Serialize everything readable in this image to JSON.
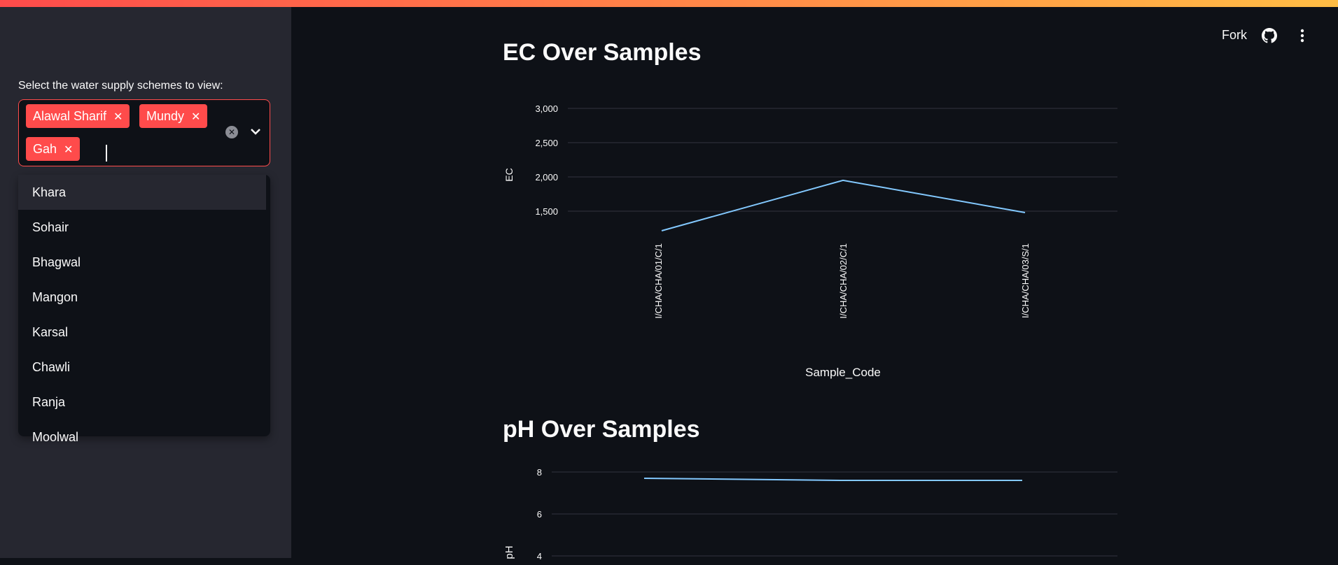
{
  "sidebar": {
    "multiselect_label": "Select the water supply schemes to view:",
    "selected": [
      "Alawal Sharif",
      "Mundy",
      "Gah"
    ],
    "options": [
      "Khara",
      "Sohair",
      "Bhagwal",
      "Mangon",
      "Karsal",
      "Chawli",
      "Ranja",
      "Moolwal"
    ]
  },
  "header": {
    "fork_label": "Fork"
  },
  "sections": {
    "ec_title": "EC Over Samples",
    "ph_title": "pH Over Samples"
  },
  "colors": {
    "accent": "#ff4b4b",
    "line": "#83c9ff",
    "grid": "#31333f"
  },
  "chart_data": [
    {
      "type": "line",
      "title": "EC Over Samples",
      "xlabel": "Sample_Code",
      "ylabel": "EC",
      "categories": [
        "I/CHA/CHA/01/C/1",
        "I/CHA/CHA/02/C/1",
        "I/CHA/CHA/03/S/1"
      ],
      "y_ticks": [
        "1,500",
        "2,000",
        "2,500",
        "3,000"
      ],
      "values": [
        1200,
        1950,
        1480
      ],
      "ylim": [
        1200,
        3000
      ],
      "grid": true
    },
    {
      "type": "line",
      "title": "pH Over Samples",
      "ylabel": "pH",
      "y_ticks": [
        "4",
        "6",
        "8"
      ],
      "values": [
        7.7,
        7.6,
        7.6
      ],
      "grid": true
    }
  ]
}
